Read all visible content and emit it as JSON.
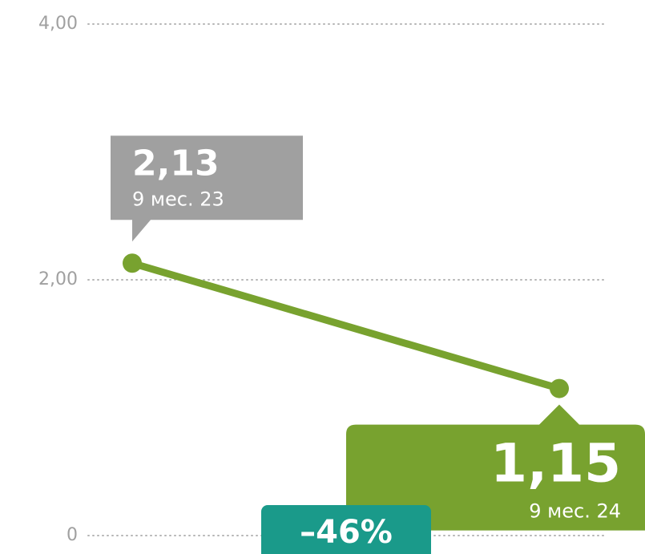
{
  "chart_data": {
    "type": "line",
    "categories": [
      "9 мес. 23",
      "9 мес. 24"
    ],
    "series": [
      {
        "color": "#78a22f",
        "values": [
          2.13,
          1.15
        ],
        "value_labels": [
          "2,13",
          "1,15"
        ]
      }
    ],
    "ylim": [
      0,
      4
    ],
    "yticks": [
      0,
      {
        "value": 2,
        "label": "2,00"
      },
      {
        "value": 4,
        "label": "4,00"
      }
    ],
    "grid": true,
    "annotation": "–46%"
  }
}
